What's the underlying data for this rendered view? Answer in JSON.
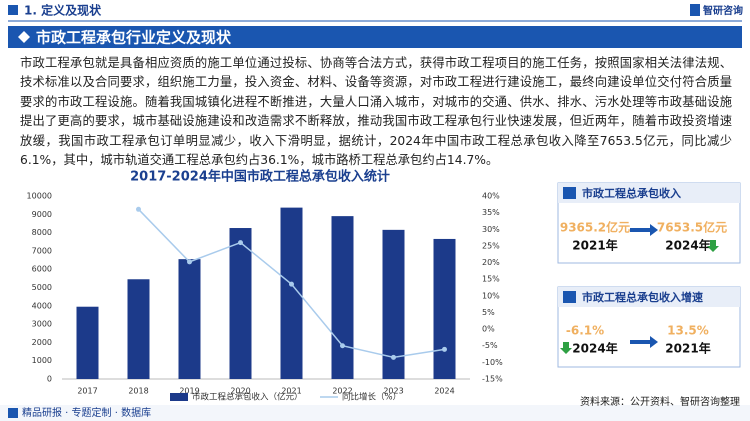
{
  "header": {
    "section": "1. 定义及现状",
    "logo": "智研咨询",
    "title": "市政工程承包行业定义及现状"
  },
  "paragraph": "市政工程承包就是具备相应资质的施工单位通过投标、协商等合法方式，获得市政工程项目的施工任务，按照国家相关法律法规、技术标准以及合同要求，组织施工力量，投入资金、材料、设备等资源，对市政工程进行建设施工，最终向建设单位交付符合质量要求的市政工程设施。随着我国城镇化进程不断推进，大量人口涌入城市，对城市的交通、供水、排水、污水处理等市政基础设施提出了更高的要求，城市基础设施建设和改造需求不断释放，推动我国市政工程承包行业快速发展，但近两年，随着市政投资增速放缓，我国市政工程承包订单明显减少，收入下滑明显，据统计，2024年中国市政工程总承包收入降至7653.5亿元，同比减少6.1%，其中，城市轨道交通工程总承包约占36.1%，城市路桥工程总承包约占14.7%。",
  "chart_data": {
    "type": "bar",
    "title": "2017-2024年中国市政工程总承包收入统计",
    "categories": [
      "2017",
      "2018",
      "2019",
      "2020",
      "2021",
      "2022",
      "2023",
      "2024"
    ],
    "series": [
      {
        "name": "市政工程总承包收入（亿元）",
        "color": "#1c3a8a",
        "values": [
          3950,
          5450,
          6550,
          8250,
          9365.2,
          8900,
          8150,
          7653.5
        ]
      },
      {
        "name": "同比增长（%）",
        "color": "#a9cbec",
        "axis": "y2",
        "type": "line",
        "values": [
          null,
          36,
          20.2,
          26,
          13.5,
          -5,
          -8.5,
          -6.1
        ]
      }
    ],
    "ylim": [
      0,
      10000
    ],
    "yticks": [
      0,
      1000,
      2000,
      3000,
      4000,
      5000,
      6000,
      7000,
      8000,
      9000,
      10000
    ],
    "y2lim": [
      -15,
      40
    ],
    "y2ticks": [
      {
        "value": -15,
        "label": "-15%"
      },
      {
        "value": -10,
        "label": "-10%"
      },
      {
        "value": -5,
        "label": "-5%"
      },
      {
        "value": 0,
        "label": "0%"
      },
      {
        "value": 5,
        "label": "5%"
      },
      {
        "value": 10,
        "label": "10%"
      },
      {
        "value": 15,
        "label": "15%"
      },
      {
        "value": 20,
        "label": "20%"
      },
      {
        "value": 25,
        "label": "25%"
      },
      {
        "value": 30,
        "label": "30%"
      },
      {
        "value": 35,
        "label": "35%"
      },
      {
        "value": 40,
        "label": "40%"
      }
    ],
    "grid": false
  },
  "panels": [
    {
      "title": "市政工程总承包收入",
      "left_value": "9365.2亿元",
      "left_year": "2021年",
      "right_value": "7653.5亿元",
      "right_year": "2024年"
    },
    {
      "title": "市政工程总承包收入增速",
      "left_value": "-6.1%",
      "left_year": "2024年",
      "right_value": "13.5%",
      "right_year": "2021年"
    }
  ],
  "footer": {
    "left": "精品研报 · 专题定制 · 数据库",
    "source": "资料来源：公开资料、智研咨询整理"
  }
}
